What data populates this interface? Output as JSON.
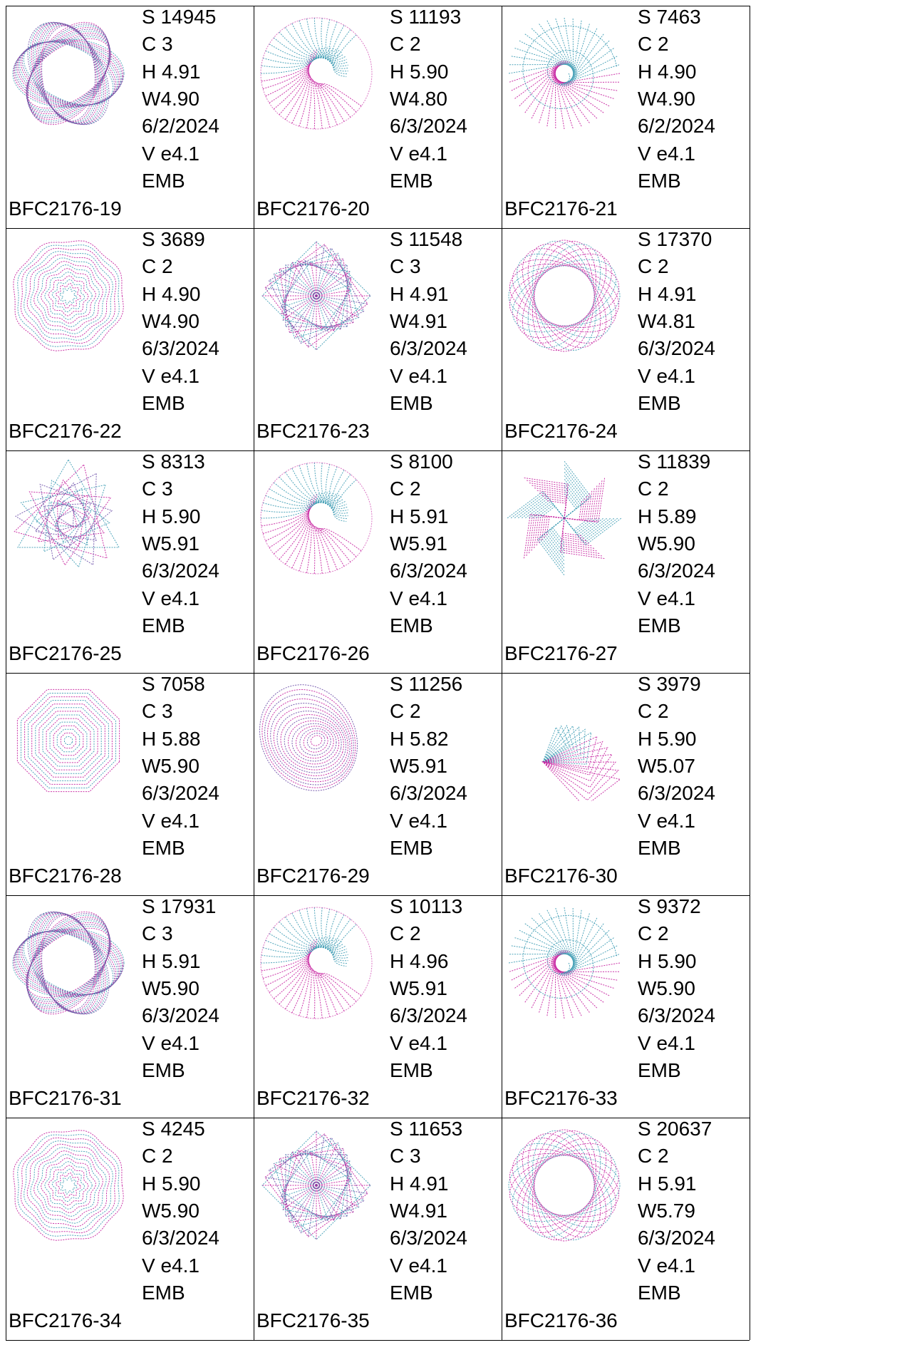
{
  "palette": {
    "pink": "#c51f9f",
    "teal": "#3e9cb4",
    "purple": "#6d4fa8",
    "line": "#000000"
  },
  "designs": [
    {
      "code": "BFC2176-19",
      "stitches": "S 14945",
      "colors": "C 3",
      "height": "H 4.91",
      "width": "W4.90",
      "date": "6/2/2024",
      "version": "V e4.1",
      "format": "EMB",
      "motif": "twisted-loops"
    },
    {
      "code": "BFC2176-20",
      "stitches": "S 11193",
      "colors": "C 2",
      "height": "H 5.90",
      "width": "W4.80",
      "date": "6/3/2024",
      "version": "V e4.1",
      "format": "EMB",
      "motif": "crescent-swirl"
    },
    {
      "code": "BFC2176-21",
      "stitches": "S 7463",
      "colors": "C 2",
      "height": "H 4.90",
      "width": "W4.90",
      "date": "6/2/2024",
      "version": "V e4.1",
      "format": "EMB",
      "motif": "spiral-disc"
    },
    {
      "code": "BFC2176-22",
      "stitches": "S 3689",
      "colors": "C 2",
      "height": "H 4.90",
      "width": "W4.90",
      "date": "6/3/2024",
      "version": "V e4.1",
      "format": "EMB",
      "motif": "concentric-rings"
    },
    {
      "code": "BFC2176-23",
      "stitches": "S 11548",
      "colors": "C 3",
      "height": "H 4.91",
      "width": "W4.91",
      "date": "6/3/2024",
      "version": "V e4.1",
      "format": "EMB",
      "motif": "rotated-squares"
    },
    {
      "code": "BFC2176-24",
      "stitches": "S 17370",
      "colors": "C 2",
      "height": "H 4.91",
      "width": "W4.81",
      "date": "6/3/2024",
      "version": "V e4.1",
      "format": "EMB",
      "motif": "ellipse-rosette"
    },
    {
      "code": "BFC2176-25",
      "stitches": "S 8313",
      "colors": "C 3",
      "height": "H 5.90",
      "width": "W5.91",
      "date": "6/3/2024",
      "version": "V e4.1",
      "format": "EMB",
      "motif": "triangle-spiral"
    },
    {
      "code": "BFC2176-26",
      "stitches": "S 8100",
      "colors": "C 2",
      "height": "H 5.91",
      "width": "W5.91",
      "date": "6/3/2024",
      "version": "V e4.1",
      "format": "EMB",
      "motif": "crescent-swirl"
    },
    {
      "code": "BFC2176-27",
      "stitches": "S 11839",
      "colors": "C 2",
      "height": "H 5.89",
      "width": "W5.90",
      "date": "6/3/2024",
      "version": "V e4.1",
      "format": "EMB",
      "motif": "star-pinwheel"
    },
    {
      "code": "BFC2176-28",
      "stitches": "S 7058",
      "colors": "C 3",
      "height": "H 5.88",
      "width": "W5.90",
      "date": "6/3/2024",
      "version": "V e4.1",
      "format": "EMB",
      "motif": "concentric-octagons"
    },
    {
      "code": "BFC2176-29",
      "stitches": "S 11256",
      "colors": "C 2",
      "height": "H 5.82",
      "width": "W5.91",
      "date": "6/3/2024",
      "version": "V e4.1",
      "format": "EMB",
      "motif": "nested-ovals"
    },
    {
      "code": "BFC2176-30",
      "stitches": "S 3979",
      "colors": "C 2",
      "height": "H 5.90",
      "width": "W5.07",
      "date": "6/3/2024",
      "version": "V e4.1",
      "format": "EMB",
      "motif": "triangle-fan"
    },
    {
      "code": "BFC2176-31",
      "stitches": "S 17931",
      "colors": "C 3",
      "height": "H 5.91",
      "width": "W5.90",
      "date": "6/3/2024",
      "version": "V e4.1",
      "format": "EMB",
      "motif": "twisted-loops"
    },
    {
      "code": "BFC2176-32",
      "stitches": "S 10113",
      "colors": "C 2",
      "height": "H 4.96",
      "width": "W5.91",
      "date": "6/3/2024",
      "version": "V e4.1",
      "format": "EMB",
      "motif": "crescent-swirl"
    },
    {
      "code": "BFC2176-33",
      "stitches": "S 9372",
      "colors": "C 2",
      "height": "H 5.90",
      "width": "W5.90",
      "date": "6/3/2024",
      "version": "V e4.1",
      "format": "EMB",
      "motif": "spiral-disc"
    },
    {
      "code": "BFC2176-34",
      "stitches": "S 4245",
      "colors": "C 2",
      "height": "H 5.90",
      "width": "W5.90",
      "date": "6/3/2024",
      "version": "V e4.1",
      "format": "EMB",
      "motif": "concentric-rings"
    },
    {
      "code": "BFC2176-35",
      "stitches": "S 11653",
      "colors": "C 3",
      "height": "H 4.91",
      "width": "W4.91",
      "date": "6/3/2024",
      "version": "V e4.1",
      "format": "EMB",
      "motif": "rotated-squares"
    },
    {
      "code": "BFC2176-36",
      "stitches": "S 20637",
      "colors": "C 2",
      "height": "H 5.91",
      "width": "W5.79",
      "date": "6/3/2024",
      "version": "V e4.1",
      "format": "EMB",
      "motif": "ellipse-rosette"
    }
  ]
}
